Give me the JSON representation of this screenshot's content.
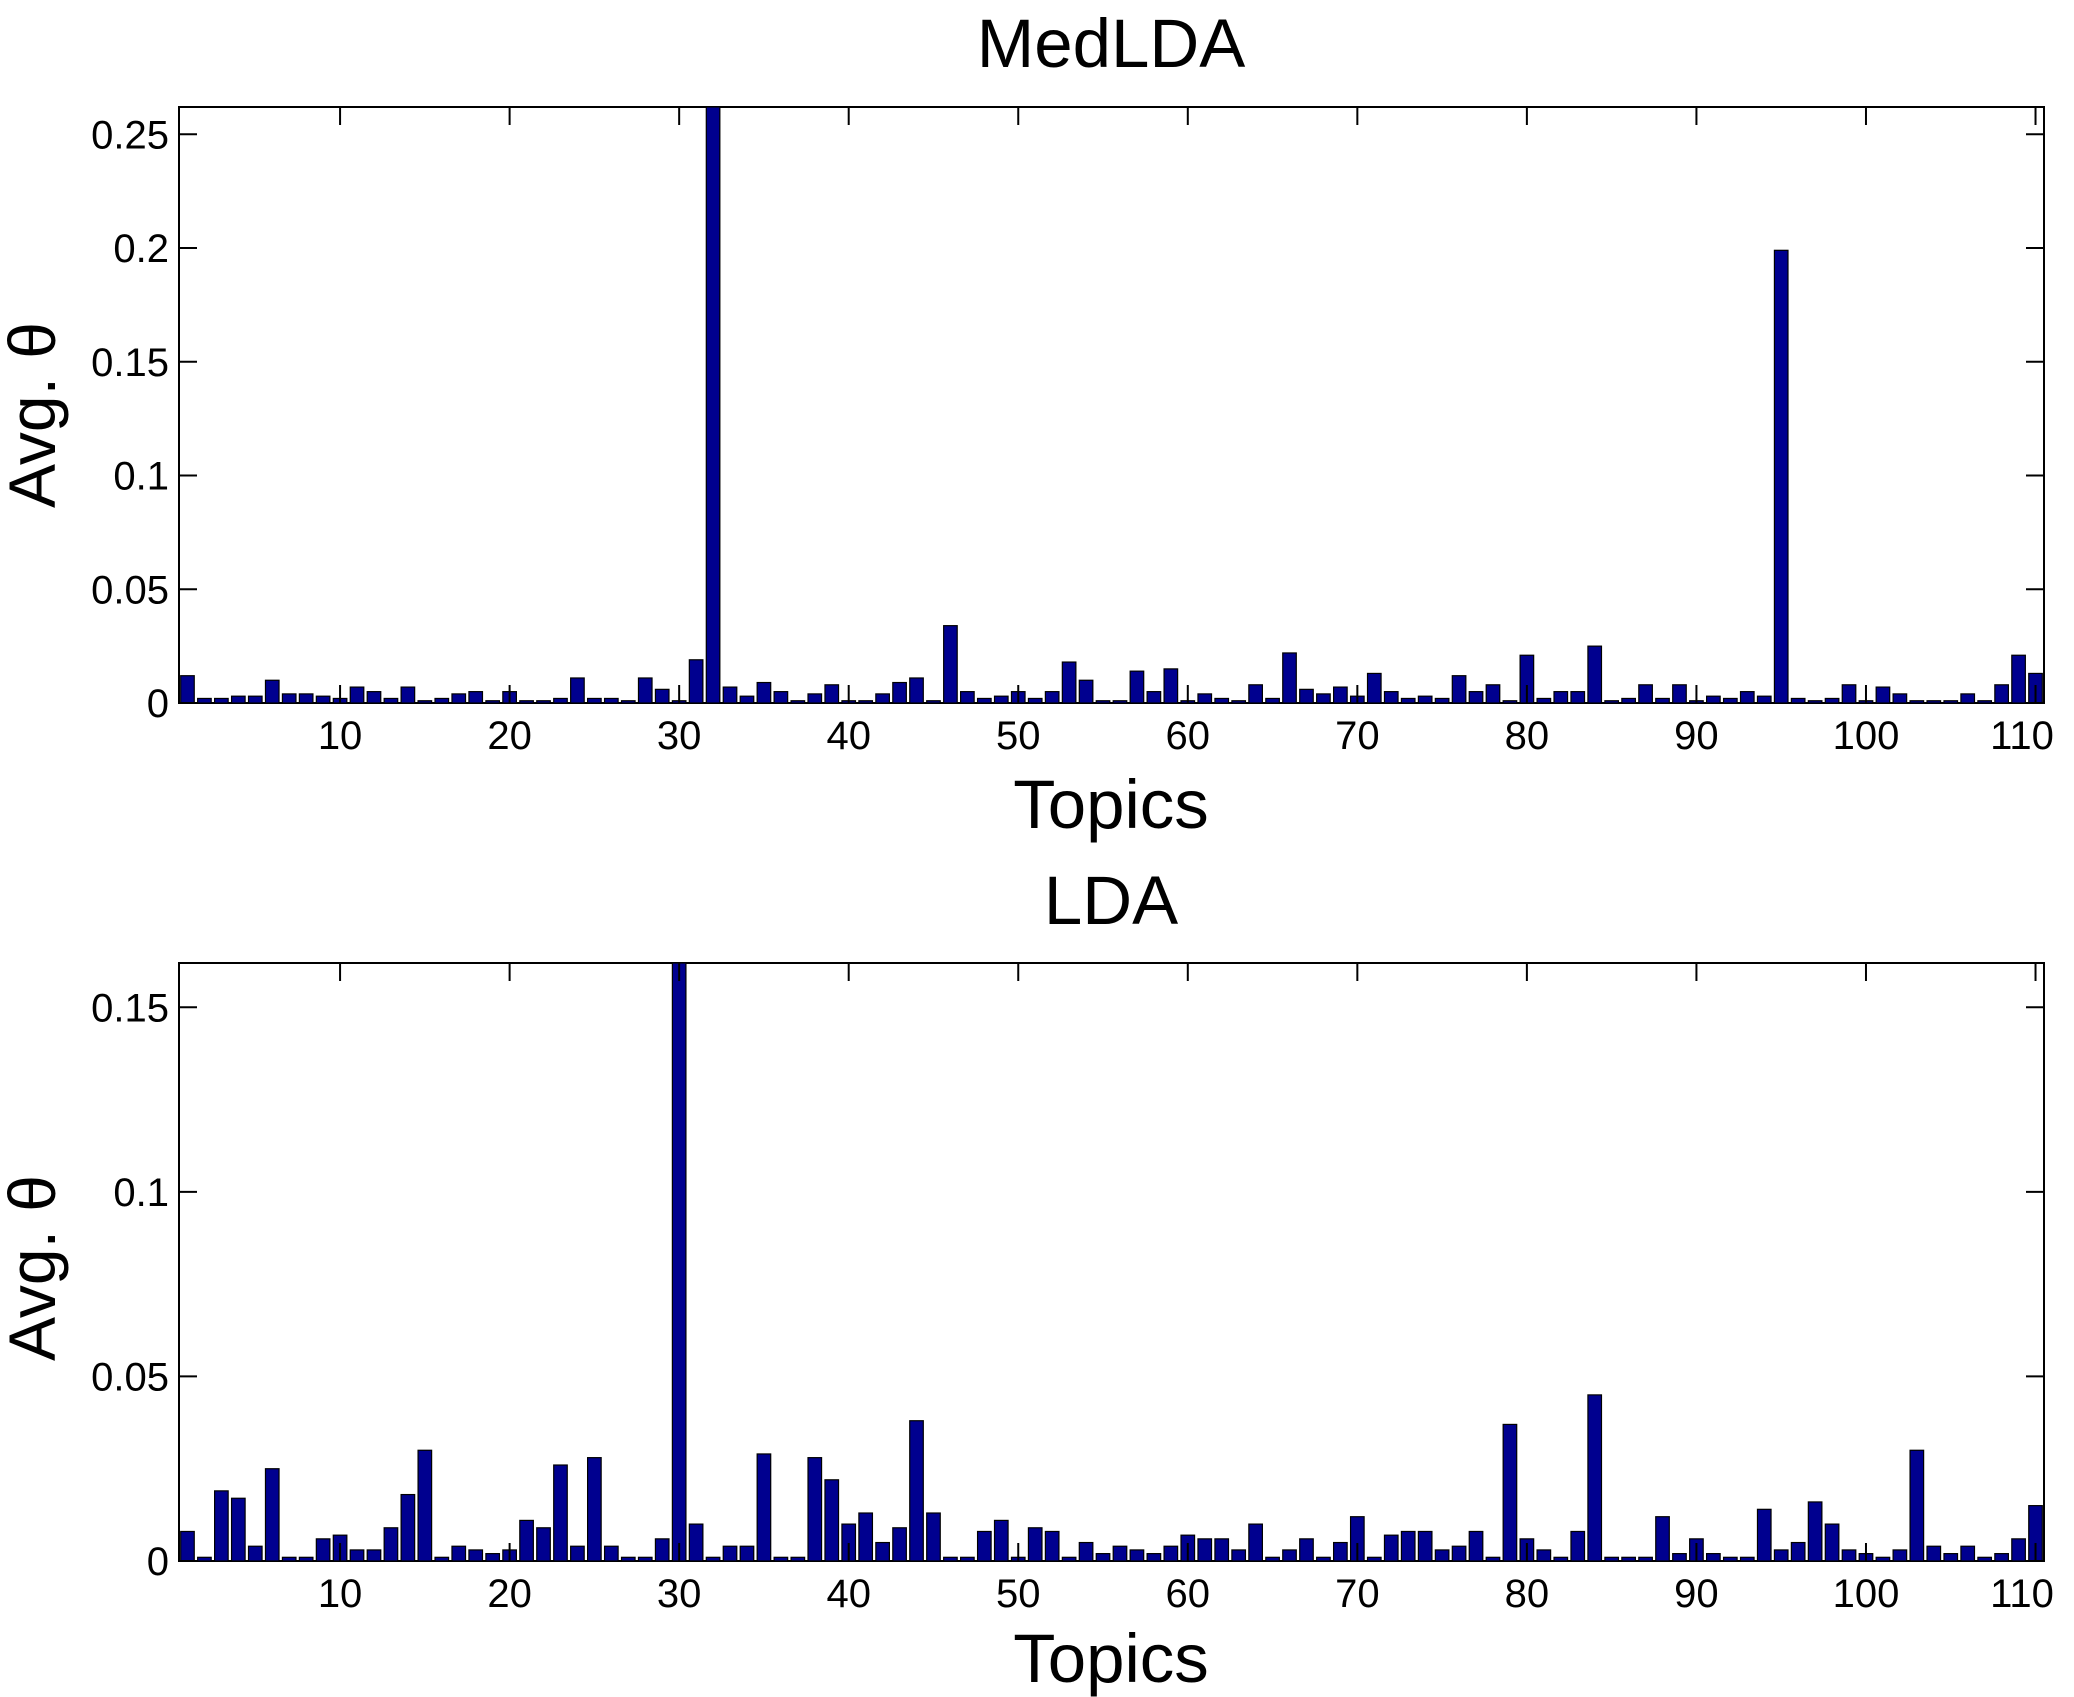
{
  "colors": {
    "bar_fill": "#00008f",
    "bar_edge": "#000000",
    "background": "#ffffff"
  },
  "chart_data": [
    {
      "type": "bar",
      "title": "MedLDA",
      "xlabel": "Topics",
      "ylabel": "Avg. θ",
      "xlim": [
        0.5,
        110.5
      ],
      "ylim": [
        0,
        0.262
      ],
      "xticks": [
        10,
        20,
        30,
        40,
        50,
        60,
        70,
        80,
        90,
        100,
        110
      ],
      "xtick_labels": [
        "10",
        "20",
        "30",
        "40",
        "50",
        "60",
        "70",
        "80",
        "90",
        "100",
        "110"
      ],
      "yticks": [
        0,
        0.05,
        0.1,
        0.15,
        0.2,
        0.25
      ],
      "ytick_labels": [
        "0",
        "0.05",
        "0.1",
        "0.15",
        "0.2",
        "0.25"
      ],
      "grid": false,
      "x": [
        1,
        2,
        3,
        4,
        5,
        6,
        7,
        8,
        9,
        10,
        11,
        12,
        13,
        14,
        15,
        16,
        17,
        18,
        19,
        20,
        21,
        22,
        23,
        24,
        25,
        26,
        27,
        28,
        29,
        30,
        31,
        32,
        33,
        34,
        35,
        36,
        37,
        38,
        39,
        40,
        41,
        42,
        43,
        44,
        45,
        46,
        47,
        48,
        49,
        50,
        51,
        52,
        53,
        54,
        55,
        56,
        57,
        58,
        59,
        60,
        61,
        62,
        63,
        64,
        65,
        66,
        67,
        68,
        69,
        70,
        71,
        72,
        73,
        74,
        75,
        76,
        77,
        78,
        79,
        80,
        81,
        82,
        83,
        84,
        85,
        86,
        87,
        88,
        89,
        90,
        91,
        92,
        93,
        94,
        95,
        96,
        97,
        98,
        99,
        100,
        101,
        102,
        103,
        104,
        105,
        106,
        107,
        108,
        109,
        110
      ],
      "values": [
        0.012,
        0.002,
        0.002,
        0.003,
        0.003,
        0.01,
        0.004,
        0.004,
        0.003,
        0.002,
        0.007,
        0.005,
        0.002,
        0.007,
        0.001,
        0.002,
        0.004,
        0.005,
        0.001,
        0.005,
        0.001,
        0.001,
        0.002,
        0.011,
        0.002,
        0.002,
        0.001,
        0.011,
        0.006,
        0.001,
        0.019,
        0.262,
        0.007,
        0.003,
        0.009,
        0.005,
        0.001,
        0.004,
        0.008,
        0.001,
        0.001,
        0.004,
        0.009,
        0.011,
        0.001,
        0.034,
        0.005,
        0.002,
        0.003,
        0.005,
        0.002,
        0.005,
        0.018,
        0.01,
        0.001,
        0.001,
        0.014,
        0.005,
        0.015,
        0.001,
        0.004,
        0.002,
        0.001,
        0.008,
        0.002,
        0.022,
        0.006,
        0.004,
        0.007,
        0.003,
        0.013,
        0.005,
        0.002,
        0.003,
        0.002,
        0.012,
        0.005,
        0.008,
        0.001,
        0.021,
        0.002,
        0.005,
        0.005,
        0.025,
        0.001,
        0.002,
        0.008,
        0.002,
        0.008,
        0.001,
        0.003,
        0.002,
        0.005,
        0.003,
        0.199,
        0.002,
        0.001,
        0.002,
        0.008,
        0.001,
        0.007,
        0.004,
        0.001,
        0.001,
        0.001,
        0.004,
        0.001,
        0.008,
        0.021,
        0.013
      ]
    },
    {
      "type": "bar",
      "title": "LDA",
      "xlabel": "Topics",
      "ylabel": "Avg. θ",
      "xlim": [
        0.5,
        110.5
      ],
      "ylim": [
        0,
        0.162
      ],
      "xticks": [
        10,
        20,
        30,
        40,
        50,
        60,
        70,
        80,
        90,
        100,
        110
      ],
      "xtick_labels": [
        "10",
        "20",
        "30",
        "40",
        "50",
        "60",
        "70",
        "80",
        "90",
        "100",
        "110"
      ],
      "yticks": [
        0,
        0.05,
        0.1,
        0.15
      ],
      "ytick_labels": [
        "0",
        "0.05",
        "0.1",
        "0.15"
      ],
      "grid": false,
      "x": [
        1,
        2,
        3,
        4,
        5,
        6,
        7,
        8,
        9,
        10,
        11,
        12,
        13,
        14,
        15,
        16,
        17,
        18,
        19,
        20,
        21,
        22,
        23,
        24,
        25,
        26,
        27,
        28,
        29,
        30,
        31,
        32,
        33,
        34,
        35,
        36,
        37,
        38,
        39,
        40,
        41,
        42,
        43,
        44,
        45,
        46,
        47,
        48,
        49,
        50,
        51,
        52,
        53,
        54,
        55,
        56,
        57,
        58,
        59,
        60,
        61,
        62,
        63,
        64,
        65,
        66,
        67,
        68,
        69,
        70,
        71,
        72,
        73,
        74,
        75,
        76,
        77,
        78,
        79,
        80,
        81,
        82,
        83,
        84,
        85,
        86,
        87,
        88,
        89,
        90,
        91,
        92,
        93,
        94,
        95,
        96,
        97,
        98,
        99,
        100,
        101,
        102,
        103,
        104,
        105,
        106,
        107,
        108,
        109,
        110
      ],
      "values": [
        0.008,
        0.001,
        0.019,
        0.017,
        0.004,
        0.025,
        0.001,
        0.001,
        0.006,
        0.007,
        0.003,
        0.003,
        0.009,
        0.018,
        0.03,
        0.001,
        0.004,
        0.003,
        0.002,
        0.003,
        0.011,
        0.009,
        0.026,
        0.004,
        0.028,
        0.004,
        0.001,
        0.001,
        0.006,
        0.162,
        0.01,
        0.001,
        0.004,
        0.004,
        0.029,
        0.001,
        0.001,
        0.028,
        0.022,
        0.01,
        0.013,
        0.005,
        0.009,
        0.038,
        0.013,
        0.001,
        0.001,
        0.008,
        0.011,
        0.001,
        0.009,
        0.008,
        0.001,
        0.005,
        0.002,
        0.004,
        0.003,
        0.002,
        0.004,
        0.007,
        0.006,
        0.006,
        0.003,
        0.01,
        0.001,
        0.003,
        0.006,
        0.001,
        0.005,
        0.012,
        0.001,
        0.007,
        0.008,
        0.008,
        0.003,
        0.004,
        0.008,
        0.001,
        0.037,
        0.006,
        0.003,
        0.001,
        0.008,
        0.045,
        0.001,
        0.001,
        0.001,
        0.012,
        0.002,
        0.006,
        0.002,
        0.001,
        0.001,
        0.014,
        0.003,
        0.005,
        0.016,
        0.01,
        0.003,
        0.002,
        0.001,
        0.003,
        0.03,
        0.004,
        0.002,
        0.004,
        0.001,
        0.002,
        0.006,
        0.015
      ]
    }
  ]
}
